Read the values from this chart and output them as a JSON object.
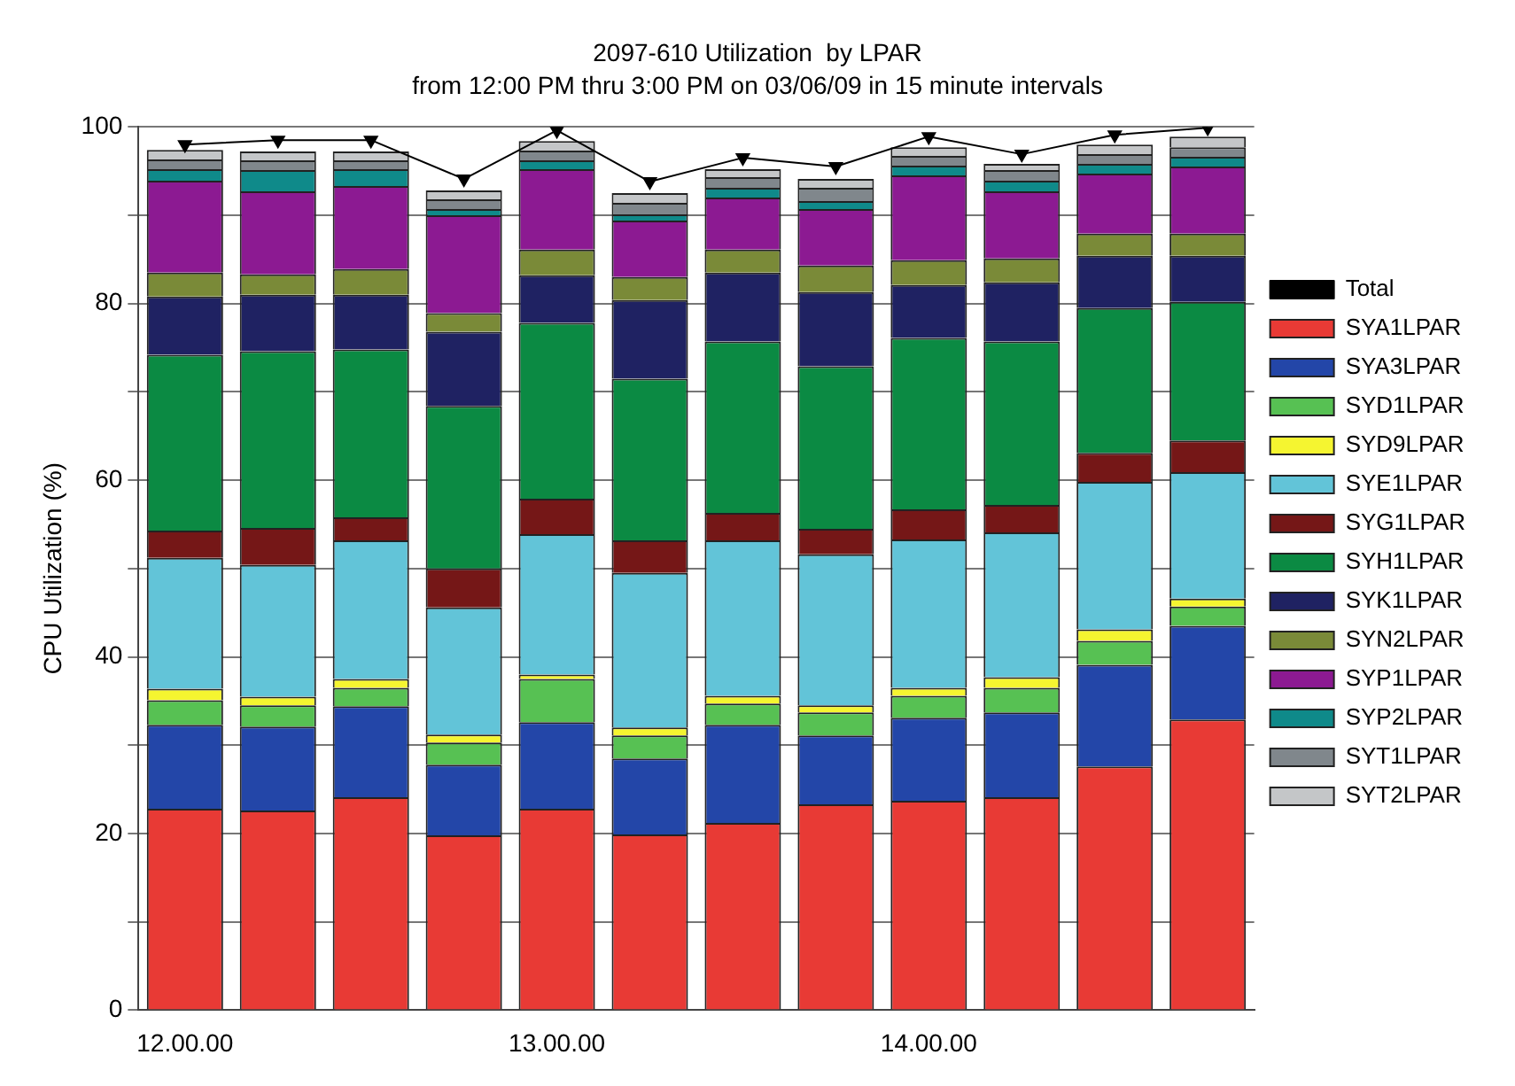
{
  "chart_data": {
    "type": "bar",
    "stacked": true,
    "title": "2097-610 Utilization  by LPAR",
    "subtitle": "from 12:00 PM thru 3:00 PM on 03/06/09 in 15 minute intervals",
    "ylabel": "CPU Utilization (%)",
    "categories": [
      "12.00.00",
      null,
      null,
      null,
      "13.00.00",
      null,
      null,
      null,
      "14.00.00",
      null,
      null,
      null
    ],
    "ylim": [
      0,
      100
    ],
    "yticks": [
      0,
      {
        "value": 10,
        "label": null
      },
      20,
      {
        "value": 30,
        "label": null
      },
      40,
      {
        "value": 50,
        "label": null
      },
      60,
      {
        "value": 70,
        "label": null
      },
      80,
      {
        "value": 90,
        "label": null
      },
      100
    ],
    "grid": "y",
    "legend": "right",
    "series": [
      {
        "name": "Total",
        "type": "line",
        "color": "#000000",
        "marker": "triangle",
        "values": [
          98.0,
          98.5,
          98.5,
          94.1,
          99.6,
          93.8,
          96.5,
          95.5,
          98.9,
          96.9,
          99.1,
          99.9
        ]
      },
      {
        "name": "SYA1LPAR",
        "color": "#e83a35",
        "values": [
          22.8,
          22.6,
          24.1,
          19.8,
          22.8,
          19.9,
          21.2,
          23.3,
          23.7,
          24.1,
          27.6,
          32.9
        ]
      },
      {
        "name": "SYA3LPAR",
        "color": "#2346a8",
        "values": [
          9.5,
          9.5,
          10.3,
          8.0,
          9.8,
          8.6,
          11.1,
          7.8,
          9.4,
          9.6,
          11.5,
          10.6
        ]
      },
      {
        "name": "SYD1LPAR",
        "color": "#57c153",
        "values": [
          2.8,
          2.4,
          2.1,
          2.5,
          4.9,
          2.6,
          2.4,
          2.6,
          2.5,
          2.8,
          2.7,
          2.2
        ]
      },
      {
        "name": "SYD9LPAR",
        "color": "#f5f530",
        "values": [
          1.3,
          1.0,
          1.0,
          0.9,
          0.5,
          0.9,
          0.9,
          0.8,
          0.9,
          1.2,
          1.3,
          0.9
        ]
      },
      {
        "name": "SYE1LPAR",
        "color": "#62c4d8",
        "values": [
          14.8,
          14.9,
          15.7,
          14.4,
          15.9,
          17.5,
          17.6,
          17.1,
          16.8,
          16.4,
          16.7,
          14.3
        ]
      },
      {
        "name": "SYG1LPAR",
        "color": "#751717",
        "values": [
          3.1,
          4.2,
          2.6,
          4.4,
          4.0,
          3.7,
          3.1,
          2.9,
          3.4,
          3.1,
          3.3,
          3.6
        ]
      },
      {
        "name": "SYH1LPAR",
        "color": "#0b8a43",
        "values": [
          19.9,
          20.0,
          19.0,
          18.4,
          19.9,
          18.3,
          19.4,
          18.4,
          19.4,
          18.5,
          16.4,
          15.7
        ]
      },
      {
        "name": "SYK1LPAR",
        "color": "#1f2262",
        "values": [
          6.6,
          6.4,
          6.2,
          8.4,
          5.4,
          8.9,
          7.8,
          8.4,
          6.0,
          6.7,
          5.9,
          5.2
        ]
      },
      {
        "name": "SYN2LPAR",
        "color": "#7a8a38",
        "values": [
          2.7,
          2.3,
          2.9,
          2.1,
          2.9,
          2.6,
          2.6,
          3.0,
          2.8,
          2.7,
          2.5,
          2.5
        ]
      },
      {
        "name": "SYP1LPAR",
        "color": "#8c1a92",
        "values": [
          10.4,
          9.4,
          9.4,
          11.1,
          9.1,
          6.4,
          5.9,
          6.4,
          9.6,
          7.6,
          6.8,
          7.6
        ]
      },
      {
        "name": "SYP2LPAR",
        "color": "#0f8a8a",
        "values": [
          1.3,
          2.4,
          1.9,
          0.7,
          1.0,
          0.7,
          1.1,
          0.9,
          1.1,
          1.2,
          1.1,
          1.1
        ]
      },
      {
        "name": "SYT1LPAR",
        "color": "#80878c",
        "values": [
          1.1,
          1.1,
          1.0,
          1.1,
          1.1,
          1.3,
          1.2,
          1.5,
          1.1,
          1.2,
          1.1,
          1.1
        ]
      },
      {
        "name": "SYT2LPAR",
        "color": "#c4c6c8",
        "values": [
          1.1,
          1.0,
          1.0,
          1.0,
          1.1,
          1.1,
          0.9,
          1.0,
          1.0,
          0.7,
          1.1,
          1.2
        ]
      }
    ]
  }
}
